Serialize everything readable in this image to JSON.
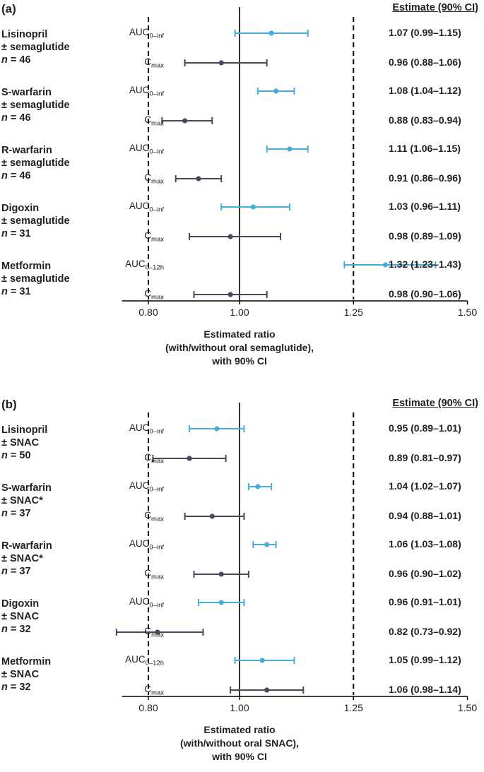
{
  "colors": {
    "auc": "#4aabdd",
    "cmax": "#444b57",
    "axis": "#000000",
    "ref": "#000000"
  },
  "chart_data": [
    {
      "type": "forest",
      "panel_label": "(a)",
      "estimate_header": "Estimate (90% CI)",
      "xlim": [
        0.75,
        1.5
      ],
      "xticks": [
        "0.80",
        "1.00",
        "1.25",
        "1.50"
      ],
      "xtick_values": [
        0.8,
        1.0,
        1.25,
        1.5
      ],
      "reference_lines": [
        0.8,
        1.25
      ],
      "null_line": 1.0,
      "xlabel": [
        "Estimated ratio",
        "(with/without oral semaglutide),",
        "with 90% CI"
      ],
      "groups": [
        {
          "drug": "Lisinopril",
          "comparison": "± semaglutide",
          "n_label": "n",
          "n_value": "= 46",
          "rows": [
            {
              "metric": "AUC",
              "metric_sub": "0–inf",
              "kind": "auc",
              "est": 1.07,
              "lo": 0.99,
              "hi": 1.15,
              "label": "1.07 (0.99–1.15)"
            },
            {
              "metric": "C",
              "metric_sub": "max",
              "kind": "cmax",
              "est": 0.96,
              "lo": 0.88,
              "hi": 1.06,
              "label": "0.96 (0.88–1.06)"
            }
          ]
        },
        {
          "drug": "S-warfarin",
          "comparison": "± semaglutide",
          "n_label": "n",
          "n_value": "= 46",
          "rows": [
            {
              "metric": "AUC",
              "metric_sub": "0–inf",
              "kind": "auc",
              "est": 1.08,
              "lo": 1.04,
              "hi": 1.12,
              "label": "1.08 (1.04–1.12)"
            },
            {
              "metric": "C",
              "metric_sub": "max",
              "kind": "cmax",
              "est": 0.88,
              "lo": 0.83,
              "hi": 0.94,
              "label": "0.88 (0.83–0.94)"
            }
          ]
        },
        {
          "drug": "R-warfarin",
          "comparison": "± semaglutide",
          "n_label": "n",
          "n_value": "= 46",
          "rows": [
            {
              "metric": "AUC",
              "metric_sub": "0–inf",
              "kind": "auc",
              "est": 1.11,
              "lo": 1.06,
              "hi": 1.15,
              "label": "1.11 (1.06–1.15)"
            },
            {
              "metric": "C",
              "metric_sub": "max",
              "kind": "cmax",
              "est": 0.91,
              "lo": 0.86,
              "hi": 0.96,
              "label": "0.91 (0.86–0.96)"
            }
          ]
        },
        {
          "drug": "Digoxin",
          "comparison": "± semaglutide",
          "n_label": "n",
          "n_value": "= 31",
          "rows": [
            {
              "metric": "AUC",
              "metric_sub": "0–inf",
              "kind": "auc",
              "est": 1.03,
              "lo": 0.96,
              "hi": 1.11,
              "label": "1.03 (0.96–1.11)"
            },
            {
              "metric": "C",
              "metric_sub": "max",
              "kind": "cmax",
              "est": 0.98,
              "lo": 0.89,
              "hi": 1.09,
              "label": "0.98 (0.89–1.09)"
            }
          ]
        },
        {
          "drug": "Metformin",
          "comparison": "± semaglutide",
          "n_label": "n",
          "n_value": "= 31",
          "rows": [
            {
              "metric": "AUC",
              "metric_sub": "0–12h",
              "kind": "auc",
              "est": 1.32,
              "lo": 1.23,
              "hi": 1.43,
              "label": "1.32 (1.23–1.43)"
            },
            {
              "metric": "C",
              "metric_sub": "max",
              "kind": "cmax",
              "est": 0.98,
              "lo": 0.9,
              "hi": 1.06,
              "label": "0.98 (0.90–1.06)"
            }
          ]
        }
      ]
    },
    {
      "type": "forest",
      "panel_label": "(b)",
      "estimate_header": "Estimate (90% CI)",
      "xlim": [
        0.75,
        1.5
      ],
      "xticks": [
        "0.80",
        "1.00",
        "1.25",
        "1.50"
      ],
      "xtick_values": [
        0.8,
        1.0,
        1.25,
        1.5
      ],
      "reference_lines": [
        0.8,
        1.25
      ],
      "null_line": 1.0,
      "xlabel": [
        "Estimated ratio",
        "(with/without oral SNAC),",
        "with 90% CI"
      ],
      "groups": [
        {
          "drug": "Lisinopril",
          "comparison": "± SNAC",
          "n_label": "n",
          "n_value": "= 50",
          "rows": [
            {
              "metric": "AUC",
              "metric_sub": "0–inf",
              "kind": "auc",
              "est": 0.95,
              "lo": 0.89,
              "hi": 1.01,
              "label": "0.95 (0.89–1.01)"
            },
            {
              "metric": "C",
              "metric_sub": "max",
              "kind": "cmax",
              "est": 0.89,
              "lo": 0.81,
              "hi": 0.97,
              "label": "0.89 (0.81–0.97)"
            }
          ]
        },
        {
          "drug": "S-warfarin",
          "comparison": "± SNAC*",
          "n_label": "n",
          "n_value": "= 37",
          "rows": [
            {
              "metric": "AUC",
              "metric_sub": "0–inf",
              "kind": "auc",
              "est": 1.04,
              "lo": 1.02,
              "hi": 1.07,
              "label": "1.04 (1.02–1.07)"
            },
            {
              "metric": "C",
              "metric_sub": "max",
              "kind": "cmax",
              "est": 0.94,
              "lo": 0.88,
              "hi": 1.01,
              "label": "0.94 (0.88–1.01)"
            }
          ]
        },
        {
          "drug": "R-warfarin",
          "comparison": "± SNAC*",
          "n_label": "n",
          "n_value": "= 37",
          "rows": [
            {
              "metric": "AUC",
              "metric_sub": "0–inf",
              "kind": "auc",
              "est": 1.06,
              "lo": 1.03,
              "hi": 1.08,
              "label": "1.06 (1.03–1.08)"
            },
            {
              "metric": "C",
              "metric_sub": "max",
              "kind": "cmax",
              "est": 0.96,
              "lo": 0.9,
              "hi": 1.02,
              "label": "0.96 (0.90–1.02)"
            }
          ]
        },
        {
          "drug": "Digoxin",
          "comparison": "± SNAC",
          "n_label": "n",
          "n_value": "= 32",
          "rows": [
            {
              "metric": "AUC",
              "metric_sub": "0–inf",
              "kind": "auc",
              "est": 0.96,
              "lo": 0.91,
              "hi": 1.01,
              "label": "0.96 (0.91–1.01)"
            },
            {
              "metric": "C",
              "metric_sub": "max",
              "kind": "cmax",
              "est": 0.82,
              "lo": 0.73,
              "hi": 0.92,
              "label": "0.82 (0.73–0.92)"
            }
          ]
        },
        {
          "drug": "Metformin",
          "comparison": "± SNAC",
          "n_label": "n",
          "n_value": "= 32",
          "rows": [
            {
              "metric": "AUC",
              "metric_sub": "0–12h",
              "kind": "auc",
              "est": 1.05,
              "lo": 0.99,
              "hi": 1.12,
              "label": "1.05 (0.99–1.12)"
            },
            {
              "metric": "C",
              "metric_sub": "max",
              "kind": "cmax",
              "est": 1.06,
              "lo": 0.98,
              "hi": 1.14,
              "label": "1.06 (0.98–1.14)"
            }
          ]
        }
      ]
    }
  ]
}
